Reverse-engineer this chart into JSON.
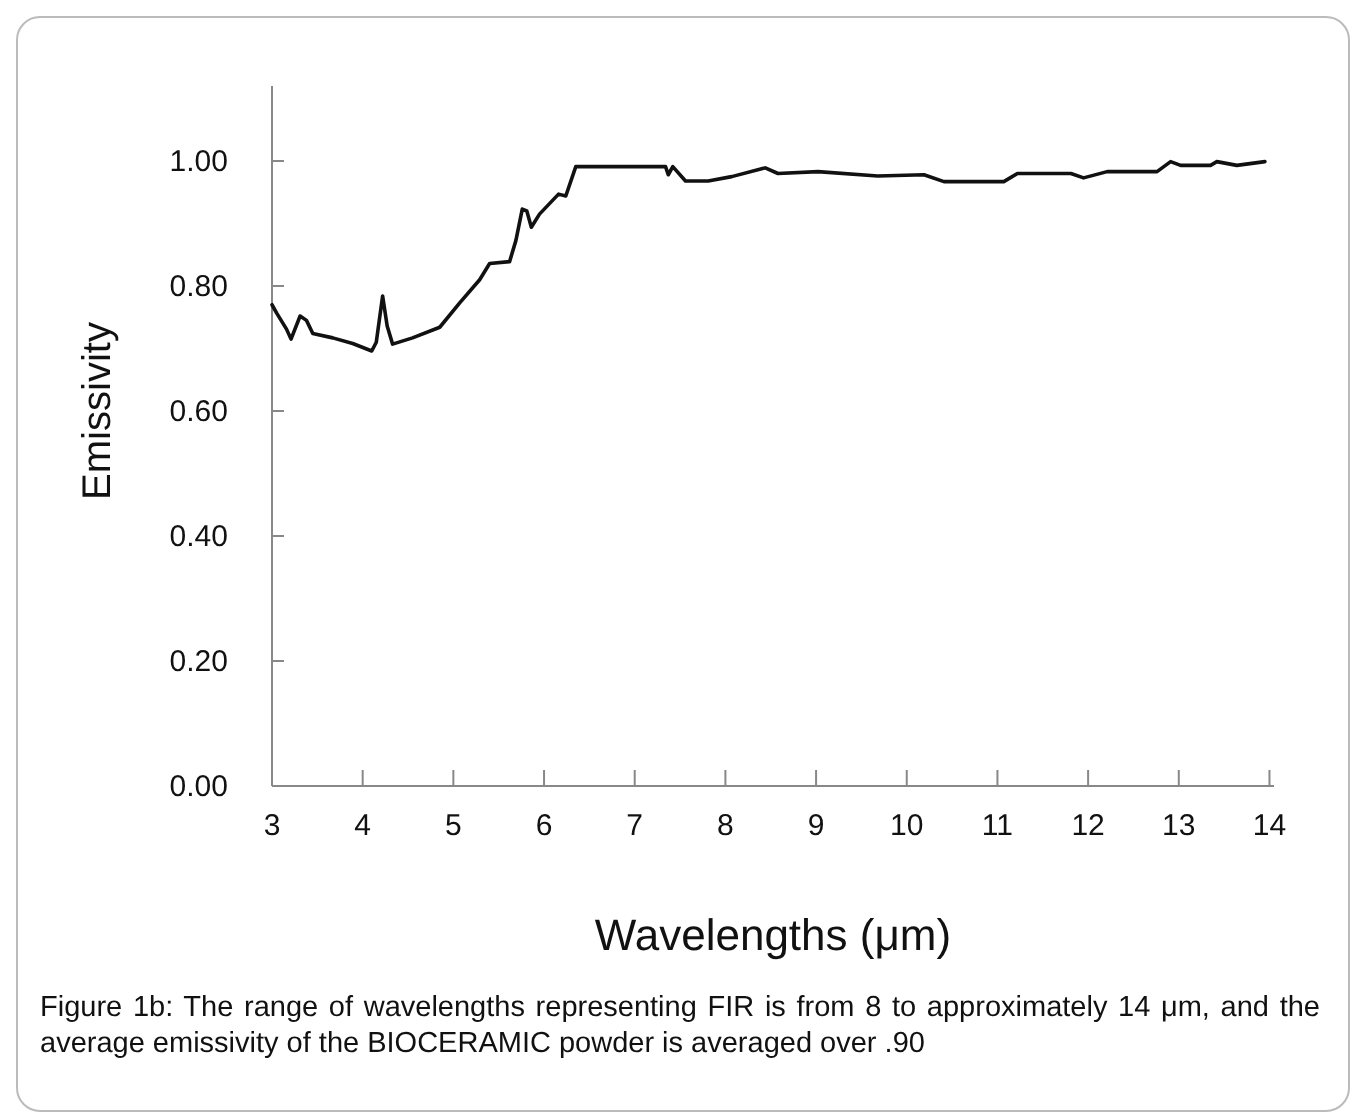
{
  "chart_data": {
    "type": "line",
    "xlabel": "Wavelengths (μm)",
    "ylabel": "Emissivity",
    "x": [
      3.0,
      3.05,
      3.16,
      3.21,
      3.31,
      3.38,
      3.45,
      3.67,
      3.89,
      4.1,
      4.15,
      4.22,
      4.27,
      4.33,
      4.55,
      4.85,
      5.07,
      5.29,
      5.4,
      5.62,
      5.69,
      5.76,
      5.81,
      5.86,
      5.95,
      6.16,
      6.24,
      6.35,
      7.34,
      7.37,
      7.42,
      7.56,
      7.81,
      8.07,
      8.44,
      8.58,
      9.02,
      9.68,
      10.19,
      10.41,
      11.07,
      11.22,
      11.81,
      11.95,
      12.21,
      12.76,
      12.91,
      13.02,
      13.35,
      13.42,
      13.64,
      13.95
    ],
    "series": [
      {
        "color": "#111111",
        "values": [
          0.77,
          0.757,
          0.731,
          0.715,
          0.752,
          0.745,
          0.724,
          0.717,
          0.708,
          0.696,
          0.71,
          0.784,
          0.736,
          0.707,
          0.717,
          0.734,
          0.773,
          0.81,
          0.836,
          0.839,
          0.873,
          0.923,
          0.92,
          0.894,
          0.915,
          0.947,
          0.944,
          0.991,
          0.991,
          0.978,
          0.991,
          0.968,
          0.968,
          0.975,
          0.989,
          0.98,
          0.983,
          0.976,
          0.978,
          0.967,
          0.967,
          0.98,
          0.98,
          0.973,
          0.983,
          0.983,
          0.999,
          0.993,
          0.993,
          0.999,
          0.993,
          0.999
        ]
      }
    ],
    "xlim": [
      3,
      14.05
    ],
    "xticks": [
      3,
      4,
      5,
      6,
      7,
      8,
      9,
      10,
      11,
      12,
      13,
      14
    ],
    "ylim": [
      0,
      1.12
    ],
    "yticks": [
      {
        "value": 0,
        "label": "0.00"
      },
      {
        "value": 0.2,
        "label": "0.20"
      },
      {
        "value": 0.4,
        "label": "0.40"
      },
      {
        "value": 0.6,
        "label": "0.60"
      },
      {
        "value": 0.8,
        "label": "0.80"
      },
      {
        "value": 1,
        "label": "1.00"
      }
    ],
    "grid": false,
    "marker": "none",
    "line_style": "solid",
    "annotations": [
      "Figure 1b: The range of wavelengths representing FIR is from 8 to approximately 14 μm, and the average emissivity of the BIOCERAMIC powder is averaged over .90"
    ]
  }
}
